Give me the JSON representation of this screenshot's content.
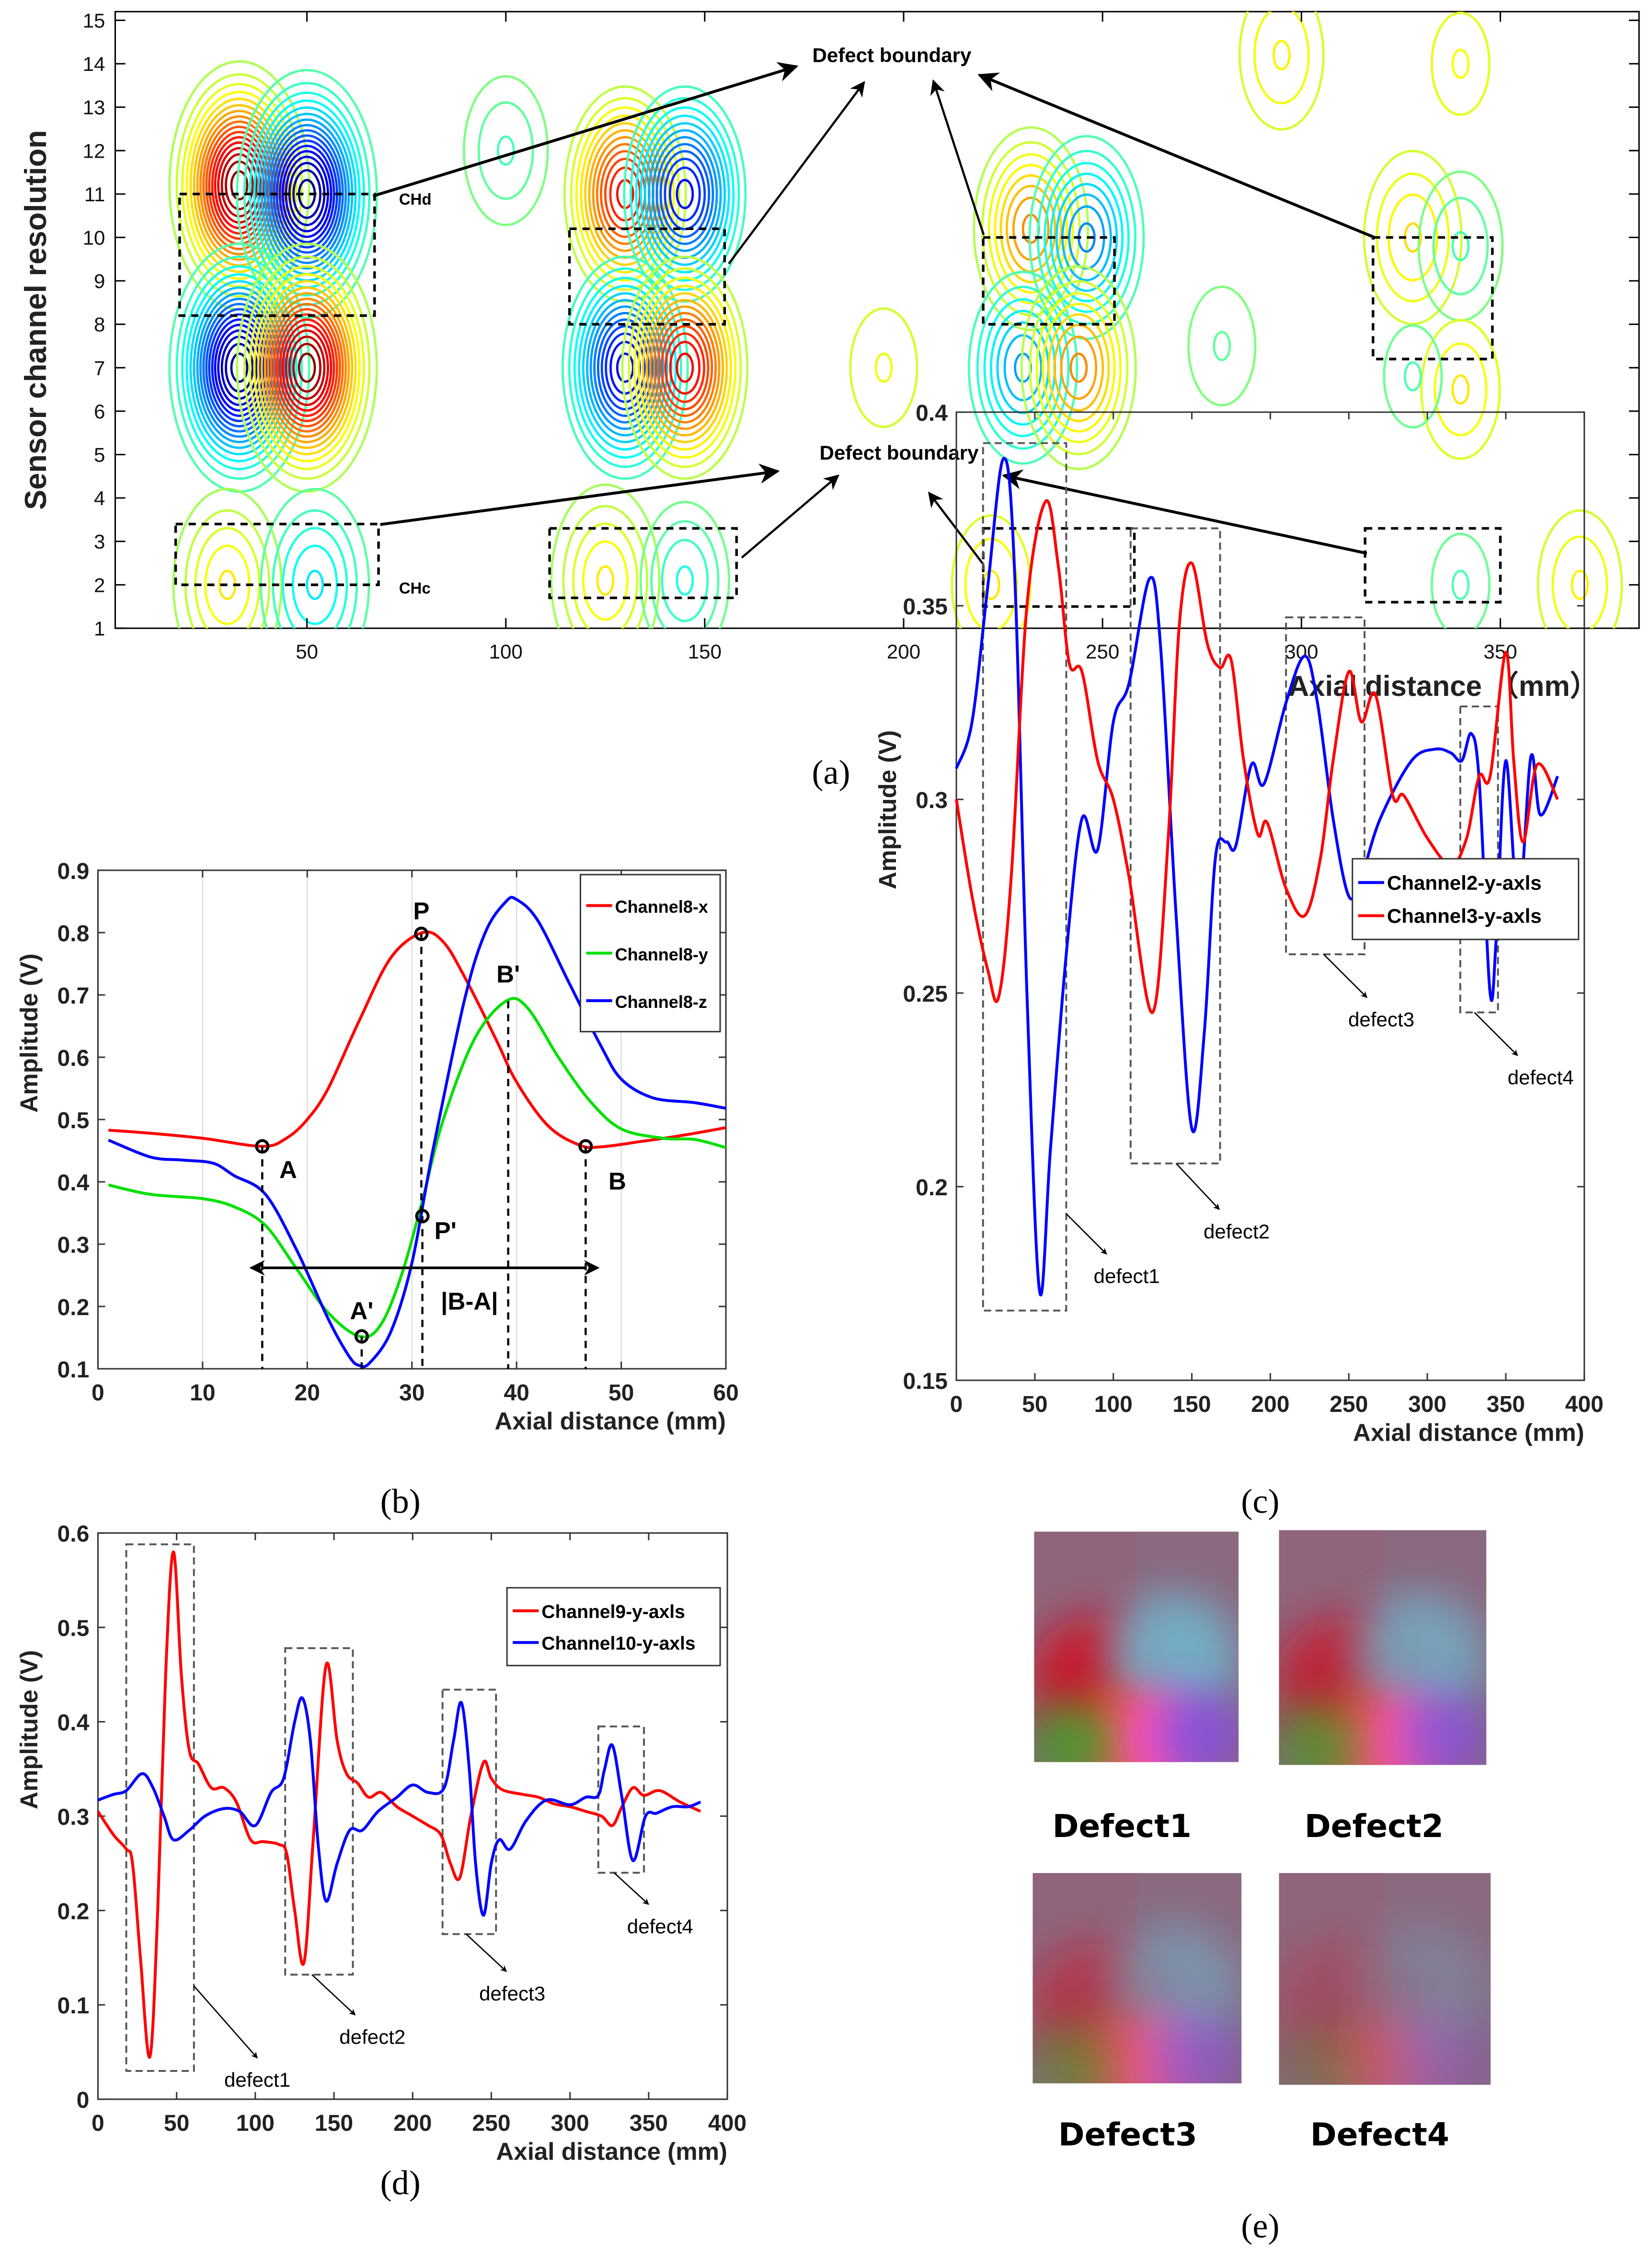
{
  "captions": {
    "a": "(a)",
    "b": "(b)",
    "c": "(c)",
    "d": "(d)",
    "e": "(e)"
  },
  "chart_data": [
    {
      "panel": "a",
      "type": "heatmap",
      "title": "",
      "xlabel": "Axial distance （mm）",
      "ylabel": "Sensor channel resolution",
      "xlim": [
        0,
        385
      ],
      "ylim": [
        1,
        15
      ],
      "xticks": [
        50,
        100,
        150,
        200,
        250,
        300,
        350
      ],
      "yticks": [
        1,
        2,
        3,
        4,
        5,
        6,
        7,
        8,
        9,
        10,
        11,
        12,
        13,
        14,
        15
      ],
      "contour_lobes_estimated": [
        {
          "x": 33,
          "y": 11.2,
          "value": 1.0
        },
        {
          "x": 50,
          "y": 11.0,
          "value": -1.0
        },
        {
          "x": 33,
          "y": 7.0,
          "value": -1.0
        },
        {
          "x": 50,
          "y": 7.0,
          "value": 1.0
        },
        {
          "x": 130,
          "y": 11.0,
          "value": 0.75
        },
        {
          "x": 145,
          "y": 11.0,
          "value": -0.75
        },
        {
          "x": 130,
          "y": 7.0,
          "value": -0.8
        },
        {
          "x": 145,
          "y": 7.0,
          "value": 0.8
        },
        {
          "x": 232,
          "y": 10.2,
          "value": 0.5
        },
        {
          "x": 246,
          "y": 10.0,
          "value": -0.5
        },
        {
          "x": 230,
          "y": 7.0,
          "value": -0.45
        },
        {
          "x": 244,
          "y": 7.0,
          "value": 0.5
        },
        {
          "x": 30,
          "y": 2.0,
          "value": 0.3
        },
        {
          "x": 52,
          "y": 2.0,
          "value": -0.3
        },
        {
          "x": 125,
          "y": 2.1,
          "value": 0.3
        },
        {
          "x": 145,
          "y": 2.1,
          "value": -0.28
        },
        {
          "x": 222,
          "y": 2.0,
          "value": 0.22
        },
        {
          "x": 328,
          "y": 10.0,
          "value": 0.25
        },
        {
          "x": 340,
          "y": 9.8,
          "value": -0.2
        },
        {
          "x": 340,
          "y": 6.5,
          "value": 0.22
        },
        {
          "x": 328,
          "y": 6.8,
          "value": -0.18
        },
        {
          "x": 340,
          "y": 2.0,
          "value": -0.18
        },
        {
          "x": 370,
          "y": 2.0,
          "value": 0.2
        },
        {
          "x": 340,
          "y": 14.0,
          "value": 0.18
        },
        {
          "x": 295,
          "y": 14.2,
          "value": 0.2
        },
        {
          "x": 100,
          "y": 12.0,
          "value": -0.2
        },
        {
          "x": 195,
          "y": 7.0,
          "value": 0.14
        },
        {
          "x": 280,
          "y": 7.5,
          "value": -0.14
        }
      ],
      "defect_boxes": [
        {
          "x": [
            18,
            67
          ],
          "y": [
            8.2,
            11.0
          ]
        },
        {
          "x": [
            17,
            68
          ],
          "y": [
            2.0,
            3.4
          ]
        },
        {
          "x": [
            116,
            155
          ],
          "y": [
            8.0,
            10.2
          ]
        },
        {
          "x": [
            111,
            158
          ],
          "y": [
            1.7,
            3.3
          ]
        },
        {
          "x": [
            220,
            253
          ],
          "y": [
            8.0,
            10.0
          ]
        },
        {
          "x": [
            220,
            258
          ],
          "y": [
            1.5,
            3.3
          ]
        },
        {
          "x": [
            318,
            348
          ],
          "y": [
            7.2,
            10.0
          ]
        },
        {
          "x": [
            316,
            350
          ],
          "y": [
            1.6,
            3.3
          ]
        }
      ],
      "annotations": {
        "boundary_top": "Defect  boundary",
        "boundary_bottom": "Defect  boundary",
        "chd": "CHd",
        "chc": "CHc"
      }
    },
    {
      "panel": "b",
      "type": "line",
      "xlabel": "Axial distance (mm)",
      "ylabel": "Amplitude (V)",
      "xlim": [
        0,
        60
      ],
      "ylim": [
        0.1,
        0.9
      ],
      "xticks": [
        0,
        10,
        20,
        30,
        40,
        50,
        60
      ],
      "yticks": [
        0.1,
        0.2,
        0.3,
        0.4,
        0.5,
        0.6,
        0.7,
        0.8,
        0.9
      ],
      "ytick_labels": [
        "0.1",
        "0.2",
        "0.3",
        "0.4",
        "0.5",
        "0.6",
        "0.7",
        "0.8",
        "0.9"
      ],
      "grid": "x",
      "legend": "top-right",
      "series": [
        {
          "name": "Channel8-x",
          "color": "#ff0000",
          "x": [
            1,
            5,
            10,
            15.7,
            18,
            20,
            22,
            25,
            28,
            31,
            33,
            35,
            38,
            40,
            43,
            46,
            48,
            52,
            56,
            60
          ],
          "y": [
            0.483,
            0.478,
            0.47,
            0.457,
            0.47,
            0.5,
            0.55,
            0.66,
            0.76,
            0.8,
            0.785,
            0.73,
            0.63,
            0.56,
            0.49,
            0.459,
            0.456,
            0.465,
            0.475,
            0.487
          ]
        },
        {
          "name": "Channel8-y",
          "color": "#00e000",
          "x": [
            1,
            5,
            10,
            13,
            16,
            19,
            22,
            25,
            27,
            29,
            31,
            33,
            36,
            39,
            41,
            44,
            47,
            50,
            54,
            57,
            60
          ],
          "y": [
            0.395,
            0.38,
            0.373,
            0.36,
            0.33,
            0.26,
            0.19,
            0.152,
            0.17,
            0.25,
            0.37,
            0.5,
            0.63,
            0.69,
            0.68,
            0.6,
            0.53,
            0.485,
            0.47,
            0.468,
            0.455
          ]
        },
        {
          "name": "Channel8-z",
          "color": "#0000ff",
          "x": [
            1,
            5,
            8,
            11,
            13,
            16,
            19,
            22,
            24,
            25,
            26,
            28,
            30,
            32,
            35,
            37,
            39,
            40,
            42,
            45,
            48,
            50,
            53,
            57,
            60
          ],
          "y": [
            0.467,
            0.44,
            0.435,
            0.43,
            0.41,
            0.38,
            0.29,
            0.18,
            0.12,
            0.105,
            0.11,
            0.16,
            0.27,
            0.45,
            0.69,
            0.8,
            0.85,
            0.853,
            0.82,
            0.72,
            0.62,
            0.565,
            0.535,
            0.527,
            0.518
          ]
        }
      ],
      "markers": [
        {
          "label": "A",
          "x": 15.7,
          "y": 0.457
        },
        {
          "label": "P",
          "x": 30.9,
          "y": 0.798
        },
        {
          "label": "B",
          "x": 46.6,
          "y": 0.457
        },
        {
          "label": "P'",
          "x": 31.0,
          "y": 0.345
        },
        {
          "label": "A'",
          "x": 25.2,
          "y": 0.152
        }
      ],
      "peak_label": {
        "label": "B'",
        "x": 39.2,
        "y": 0.69
      },
      "span_label": "|B-A|",
      "span": {
        "x": [
          15.8,
          46.6
        ],
        "y": 0.262
      }
    },
    {
      "panel": "c",
      "type": "line",
      "xlabel": "Axial distance (mm)",
      "ylabel": "Amplitude (V)",
      "xlim": [
        0,
        400
      ],
      "ylim": [
        0.15,
        0.4
      ],
      "xticks": [
        0,
        50,
        100,
        150,
        200,
        250,
        300,
        350,
        400
      ],
      "yticks": [
        0.15,
        0.2,
        0.25,
        0.3,
        0.35,
        0.4
      ],
      "ytick_labels": [
        "0.15",
        "0.2",
        "0.25",
        "0.3",
        "0.35",
        "0.4"
      ],
      "legend": "top-right",
      "series": [
        {
          "name": "Channel2-y-axls",
          "color": "#0000ff",
          "x": [
            0,
            10,
            20,
            30,
            37,
            45,
            53,
            60,
            70,
            80,
            90,
            100,
            110,
            123,
            130,
            140,
            150,
            158,
            165,
            172,
            178,
            188,
            196,
            210,
            222,
            230,
            240,
            250,
            258,
            270,
            290,
            305,
            315,
            322,
            328,
            333,
            340,
            344,
            350,
            358,
            366,
            372,
            383
          ],
          "y": [
            0.308,
            0.32,
            0.355,
            0.388,
            0.36,
            0.25,
            0.173,
            0.21,
            0.26,
            0.295,
            0.287,
            0.32,
            0.33,
            0.357,
            0.34,
            0.27,
            0.215,
            0.24,
            0.285,
            0.289,
            0.288,
            0.309,
            0.304,
            0.325,
            0.337,
            0.325,
            0.295,
            0.275,
            0.28,
            0.295,
            0.31,
            0.313,
            0.312,
            0.31,
            0.317,
            0.305,
            0.25,
            0.265,
            0.31,
            0.272,
            0.311,
            0.296,
            0.306
          ]
        },
        {
          "name": "Channel3-y-axls",
          "color": "#ff0000",
          "x": [
            0,
            10,
            20,
            27,
            35,
            45,
            57,
            65,
            72,
            80,
            90,
            100,
            110,
            125,
            135,
            142,
            150,
            160,
            168,
            175,
            183,
            192,
            198,
            210,
            222,
            232,
            240,
            250,
            258,
            267,
            278,
            285,
            300,
            315,
            325,
            333,
            340,
            350,
            355,
            361,
            370,
            383
          ],
          "y": [
            0.3,
            0.275,
            0.256,
            0.249,
            0.28,
            0.35,
            0.377,
            0.36,
            0.335,
            0.333,
            0.31,
            0.3,
            0.28,
            0.245,
            0.29,
            0.345,
            0.361,
            0.34,
            0.334,
            0.336,
            0.31,
            0.291,
            0.294,
            0.277,
            0.27,
            0.285,
            0.31,
            0.333,
            0.32,
            0.327,
            0.301,
            0.301,
            0.29,
            0.283,
            0.29,
            0.306,
            0.306,
            0.338,
            0.31,
            0.289,
            0.309,
            0.3
          ]
        }
      ],
      "defect_boxes": [
        {
          "label": "defect1",
          "x": [
            17,
            70
          ],
          "y": [
            0.168,
            0.392
          ]
        },
        {
          "label": "defect2",
          "x": [
            111,
            168
          ],
          "y": [
            0.206,
            0.37
          ]
        },
        {
          "label": "defect3",
          "x": [
            210,
            260
          ],
          "y": [
            0.26,
            0.347
          ]
        },
        {
          "label": "defect4",
          "x": [
            321,
            345
          ],
          "y": [
            0.245,
            0.324
          ]
        }
      ]
    },
    {
      "panel": "d",
      "type": "line",
      "xlabel": "Axial distance (mm)",
      "ylabel": "Amplitude (V)",
      "xlim": [
        0,
        400
      ],
      "ylim": [
        0,
        0.6
      ],
      "xticks": [
        0,
        50,
        100,
        150,
        200,
        250,
        300,
        350,
        400
      ],
      "yticks": [
        0,
        0.1,
        0.2,
        0.3,
        0.4,
        0.5,
        0.6
      ],
      "ytick_labels": [
        "0",
        "0.1",
        "0.2",
        "0.3",
        "0.4",
        "0.5",
        "0.6"
      ],
      "legend": "top-right",
      "series": [
        {
          "name": "Channel9-y-axls",
          "color": "#ff0000",
          "x": [
            0,
            10,
            18,
            22,
            27,
            33,
            38,
            43,
            48,
            53,
            58,
            64,
            72,
            80,
            88,
            97,
            105,
            115,
            120,
            125,
            131,
            137,
            145,
            152,
            158,
            165,
            172,
            180,
            190,
            200,
            210,
            218,
            224,
            230,
            237,
            245,
            250,
            257,
            270,
            280,
            290,
            300,
            310,
            320,
            327,
            333,
            340,
            347,
            357,
            370,
            383
          ],
          "y": [
            0.305,
            0.28,
            0.265,
            0.25,
            0.15,
            0.045,
            0.2,
            0.45,
            0.58,
            0.45,
            0.37,
            0.355,
            0.33,
            0.33,
            0.315,
            0.275,
            0.273,
            0.27,
            0.26,
            0.2,
            0.145,
            0.28,
            0.46,
            0.38,
            0.345,
            0.335,
            0.32,
            0.325,
            0.31,
            0.3,
            0.29,
            0.28,
            0.25,
            0.235,
            0.3,
            0.357,
            0.34,
            0.328,
            0.323,
            0.32,
            0.313,
            0.31,
            0.305,
            0.3,
            0.29,
            0.31,
            0.33,
            0.322,
            0.327,
            0.315,
            0.305
          ]
        },
        {
          "name": "Channel10-y-axls",
          "color": "#0000ff",
          "x": [
            0,
            10,
            18,
            28,
            35,
            42,
            48,
            58,
            68,
            80,
            90,
            100,
            110,
            118,
            125,
            130,
            135,
            140,
            145,
            152,
            160,
            168,
            178,
            190,
            200,
            210,
            220,
            226,
            231,
            236,
            240,
            245,
            250,
            255,
            262,
            272,
            285,
            300,
            310,
            318,
            322,
            327,
            333,
            340,
            348,
            355,
            365,
            375,
            383
          ],
          "y": [
            0.317,
            0.323,
            0.327,
            0.345,
            0.33,
            0.3,
            0.275,
            0.285,
            0.3,
            0.308,
            0.305,
            0.29,
            0.325,
            0.34,
            0.4,
            0.425,
            0.38,
            0.27,
            0.21,
            0.25,
            0.285,
            0.285,
            0.305,
            0.32,
            0.333,
            0.325,
            0.33,
            0.38,
            0.42,
            0.35,
            0.25,
            0.195,
            0.25,
            0.275,
            0.265,
            0.295,
            0.317,
            0.312,
            0.32,
            0.322,
            0.35,
            0.375,
            0.32,
            0.253,
            0.3,
            0.303,
            0.31,
            0.31,
            0.315
          ]
        }
      ],
      "defect_boxes": [
        {
          "label": "defect1",
          "x": [
            18,
            61
          ],
          "y": [
            0.03,
            0.588
          ]
        },
        {
          "label": "defect2",
          "x": [
            119,
            162
          ],
          "y": [
            0.132,
            0.478
          ]
        },
        {
          "label": "defect3",
          "x": [
            219,
            253
          ],
          "y": [
            0.175,
            0.434
          ]
        },
        {
          "label": "defect4",
          "x": [
            318,
            347
          ],
          "y": [
            0.24,
            0.395
          ]
        }
      ]
    }
  ],
  "panel_e": {
    "images": [
      {
        "label": "Defect1",
        "intensity": 1.0
      },
      {
        "label": "Defect2",
        "intensity": 0.85
      },
      {
        "label": "Defect3",
        "intensity": 0.6
      },
      {
        "label": "Defect4",
        "intensity": 0.3
      }
    ]
  }
}
